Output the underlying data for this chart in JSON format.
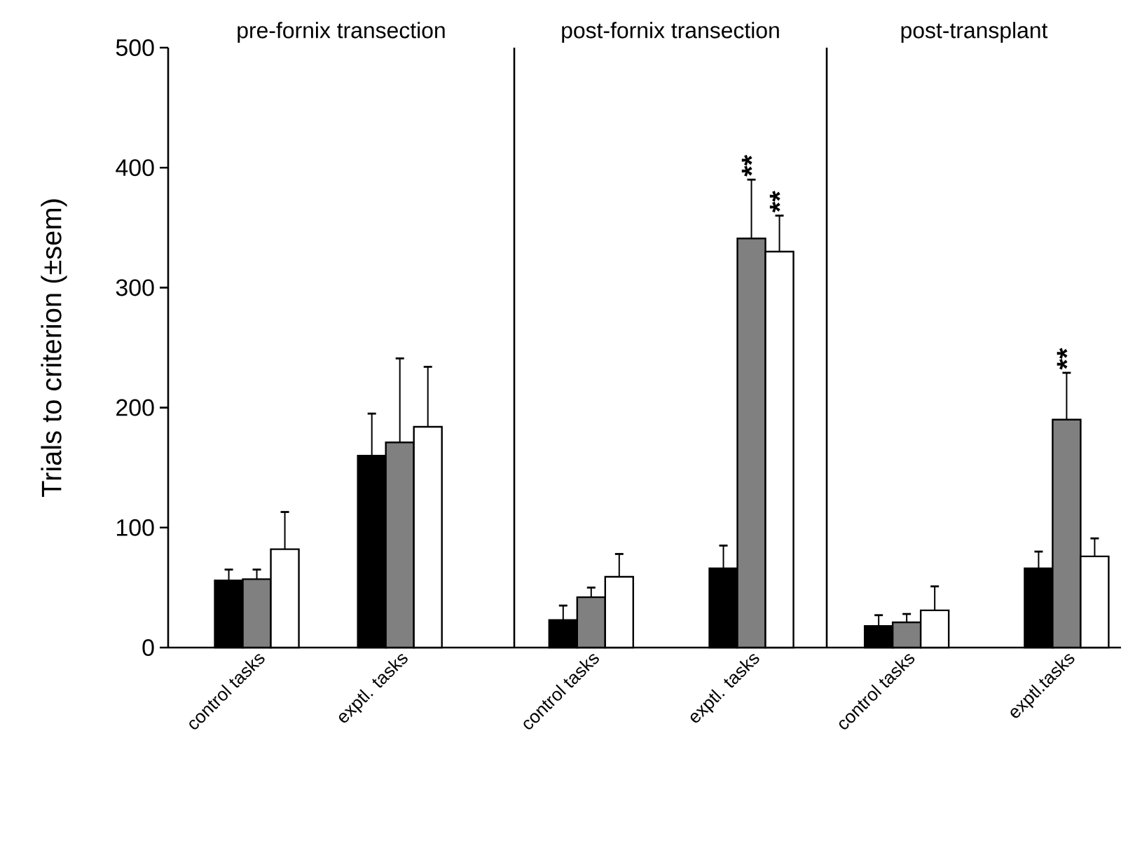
{
  "chart_data": [
    {
      "type": "bar",
      "title": "pre-fornix transection",
      "ylabel": "Trials to criterion (±sem)",
      "categories": [
        "control tasks",
        "exptl. tasks"
      ],
      "ylim": [
        0,
        500
      ],
      "yticks": [
        0,
        100,
        200,
        300,
        400,
        500
      ],
      "series": [
        {
          "color": "#000000",
          "values": [
            56,
            160
          ],
          "errors": [
            9,
            35
          ]
        },
        {
          "color": "#808080",
          "values": [
            57,
            171
          ],
          "errors": [
            8,
            70
          ]
        },
        {
          "color": "#ffffff",
          "values": [
            82,
            184
          ],
          "errors": [
            31,
            50
          ]
        }
      ]
    },
    {
      "type": "bar",
      "title": "post-fornix transection",
      "categories": [
        "control tasks",
        "exptl. tasks"
      ],
      "ylim": [
        0,
        500
      ],
      "tick_labels": "x",
      "series": [
        {
          "color": "#000000",
          "values": [
            23,
            66
          ],
          "errors": [
            12,
            19
          ]
        },
        {
          "color": "#808080",
          "values": [
            42,
            341
          ],
          "errors": [
            8,
            49
          ]
        },
        {
          "color": "#ffffff",
          "values": [
            59,
            330
          ],
          "errors": [
            19,
            30
          ]
        }
      ],
      "annotations": [
        "**",
        "**"
      ]
    },
    {
      "type": "bar",
      "title": "post-transplant",
      "categories": [
        "control tasks",
        "exptl.tasks"
      ],
      "ylim": [
        0,
        500
      ],
      "tick_labels": "x",
      "series": [
        {
          "color": "#000000",
          "values": [
            18,
            66
          ],
          "errors": [
            9,
            14
          ]
        },
        {
          "color": "#808080",
          "values": [
            21,
            190
          ],
          "errors": [
            7,
            39
          ]
        },
        {
          "color": "#ffffff",
          "values": [
            31,
            76
          ],
          "errors": [
            20,
            15
          ]
        }
      ],
      "annotations": [
        "**"
      ]
    }
  ]
}
